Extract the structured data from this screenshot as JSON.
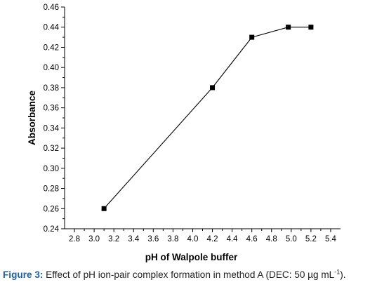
{
  "chart_data": {
    "type": "line",
    "title": "",
    "xlabel": "pH of Walpole buffer",
    "ylabel": "Absorbance",
    "xlim": [
      2.7,
      5.5
    ],
    "ylim": [
      0.24,
      0.46
    ],
    "x_ticks": [
      "2.8",
      "3.0",
      "3.2",
      "3.4",
      "3.6",
      "3.8",
      "4.0",
      "4.2",
      "4.4",
      "4.6",
      "4.8",
      "5.0",
      "5.2",
      "5.4"
    ],
    "y_ticks": [
      "0.24",
      "0.26",
      "0.28",
      "0.30",
      "0.32",
      "0.34",
      "0.36",
      "0.38",
      "0.40",
      "0.42",
      "0.44",
      "0.46"
    ],
    "grid": false,
    "legend": "none",
    "series": [
      {
        "x": [
          3.1,
          4.2,
          4.6,
          4.97,
          5.2
        ],
        "y": [
          0.26,
          0.38,
          0.43,
          0.44,
          0.44
        ],
        "color": "#000000",
        "marker": "square"
      }
    ]
  },
  "caption": {
    "lead": "Figure 3:",
    "text": " Effect of pH ion-pair complex formation in method A (DEC: 50 µg mL",
    "superscript": "-1",
    "tail": ")."
  }
}
